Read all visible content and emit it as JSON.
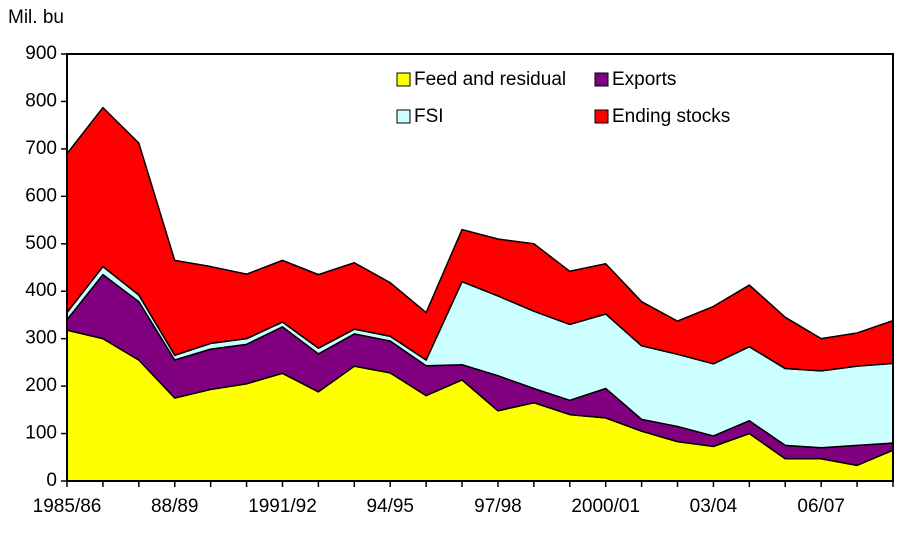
{
  "chart_data": {
    "type": "stacked_area",
    "y_label": "Mil. bu",
    "categories": [
      "1985/86",
      null,
      null,
      "88/89",
      null,
      null,
      "1991/92",
      null,
      null,
      "94/95",
      null,
      null,
      "97/98",
      null,
      null,
      "2000/01",
      null,
      null,
      "03/04",
      null,
      null,
      "06/07",
      null,
      null
    ],
    "series": [
      {
        "name": "Feed and residual",
        "color": "#ffff00",
        "values": [
          318,
          300,
          255,
          175,
          193,
          205,
          227,
          188,
          242,
          228,
          180,
          213,
          148,
          165,
          140,
          133,
          105,
          83,
          73,
          100,
          47,
          47,
          33,
          65
        ]
      },
      {
        "name": "Exports",
        "color": "#800080",
        "values": [
          22,
          135,
          123,
          80,
          85,
          83,
          98,
          80,
          68,
          67,
          63,
          32,
          74,
          30,
          30,
          62,
          25,
          32,
          22,
          27,
          28,
          23,
          42,
          15
        ]
      },
      {
        "name": "FSI",
        "color": "#ccffff",
        "values": [
          15,
          17,
          14,
          10,
          12,
          12,
          10,
          12,
          10,
          10,
          12,
          175,
          168,
          163,
          160,
          157,
          155,
          152,
          152,
          156,
          162,
          162,
          167,
          168
        ]
      },
      {
        "name": "Ending stocks",
        "color": "#ff0000",
        "values": [
          335,
          335,
          320,
          200,
          162,
          136,
          130,
          155,
          140,
          113,
          100,
          110,
          120,
          142,
          112,
          106,
          93,
          70,
          121,
          130,
          108,
          68,
          70,
          90
        ]
      }
    ],
    "ylim": [
      0,
      900
    ],
    "yticks": [
      0,
      100,
      200,
      300,
      400,
      500,
      600,
      700,
      800,
      900
    ],
    "legend": "top"
  }
}
